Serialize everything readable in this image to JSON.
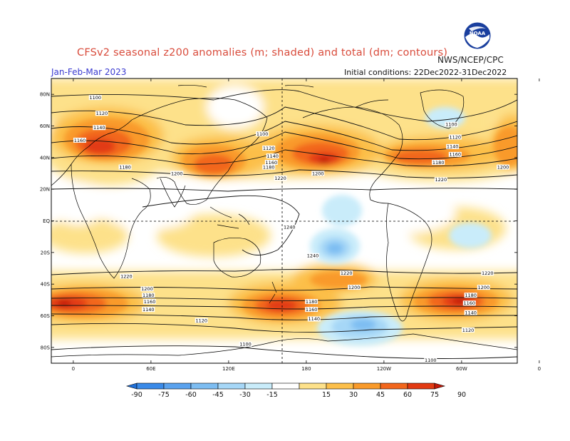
{
  "header": {
    "title": "CFSv2 seasonal z200 anomalies (m; shaded) and total (dm; contours)",
    "agency": "NWS/NCEP/CPC",
    "season": "Jan-Feb-Mar 2023",
    "initial_conditions": "Initial conditions: 22Dec2022-31Dec2022",
    "logo_icon": "noaa-logo-icon"
  },
  "map": {
    "projection": "equirectangular",
    "lat_ticks": [
      "80N",
      "60N",
      "40N",
      "20N",
      "EQ",
      "20S",
      "40S",
      "60S",
      "80S"
    ],
    "lon_ticks": [
      "0",
      "60E",
      "120E",
      "180",
      "120W",
      "60W",
      "0"
    ],
    "contour_labels": [
      {
        "text": "1100",
        "lon": 17,
        "lat": 78
      },
      {
        "text": "1120",
        "lon": 22,
        "lat": 68
      },
      {
        "text": "1140",
        "lon": 20,
        "lat": 59
      },
      {
        "text": "1160",
        "lon": 5,
        "lat": 51
      },
      {
        "text": "1180",
        "lon": 40,
        "lat": 34
      },
      {
        "text": "1200",
        "lon": 80,
        "lat": 30
      },
      {
        "text": "1100",
        "lon": 146,
        "lat": 55
      },
      {
        "text": "1120",
        "lon": 151,
        "lat": 46
      },
      {
        "text": "1140",
        "lon": 154,
        "lat": 41
      },
      {
        "text": "1160",
        "lon": 153,
        "lat": 37
      },
      {
        "text": "1180",
        "lon": 151,
        "lat": 34
      },
      {
        "text": "1220",
        "lon": 160,
        "lat": 27
      },
      {
        "text": "1200",
        "lon": 189,
        "lat": 30
      },
      {
        "text": "1100",
        "lon": 292,
        "lat": 61
      },
      {
        "text": "1120",
        "lon": 295,
        "lat": 53
      },
      {
        "text": "1140",
        "lon": 293,
        "lat": 47
      },
      {
        "text": "1160",
        "lon": 295,
        "lat": 42
      },
      {
        "text": "1180",
        "lon": 282,
        "lat": 37
      },
      {
        "text": "1200",
        "lon": 332,
        "lat": 34
      },
      {
        "text": "1220",
        "lon": 284,
        "lat": 26
      },
      {
        "text": "1240",
        "lon": 167,
        "lat": -4
      },
      {
        "text": "1240",
        "lon": 185,
        "lat": -22
      },
      {
        "text": "1220",
        "lon": 211,
        "lat": -33
      },
      {
        "text": "1220",
        "lon": 320,
        "lat": -33
      },
      {
        "text": "1220",
        "lon": 41,
        "lat": -35
      },
      {
        "text": "1200",
        "lon": 57,
        "lat": -43
      },
      {
        "text": "1200",
        "lon": 217,
        "lat": -42
      },
      {
        "text": "1200",
        "lon": 317,
        "lat": -42
      },
      {
        "text": "1180",
        "lon": 58,
        "lat": -47
      },
      {
        "text": "1180",
        "lon": 184,
        "lat": -51
      },
      {
        "text": "1180",
        "lon": 307,
        "lat": -47
      },
      {
        "text": "1160",
        "lon": 59,
        "lat": -51
      },
      {
        "text": "1160",
        "lon": 184,
        "lat": -56
      },
      {
        "text": "1160",
        "lon": 306,
        "lat": -52
      },
      {
        "text": "1140",
        "lon": 58,
        "lat": -56
      },
      {
        "text": "1140",
        "lon": 186,
        "lat": -62
      },
      {
        "text": "1140",
        "lon": 307,
        "lat": -58
      },
      {
        "text": "1120",
        "lon": 99,
        "lat": -63
      },
      {
        "text": "1120",
        "lon": 305,
        "lat": -69
      },
      {
        "text": "1100",
        "lon": 133,
        "lat": -78
      },
      {
        "text": "1100",
        "lon": 276,
        "lat": -88
      }
    ]
  },
  "colorbar": {
    "ticks": [
      "-90",
      "-75",
      "-60",
      "-45",
      "-30",
      "-15",
      "15",
      "30",
      "45",
      "60",
      "75",
      "90"
    ],
    "colors": [
      "#2070d8",
      "#3a8ae8",
      "#5aa2ee",
      "#7dbdf2",
      "#a6d7f7",
      "#c9ecfa",
      "#ffffff",
      "#fde18a",
      "#fcbf4a",
      "#f99a2a",
      "#f2661c",
      "#e23a12",
      "#c31a0a"
    ]
  }
}
